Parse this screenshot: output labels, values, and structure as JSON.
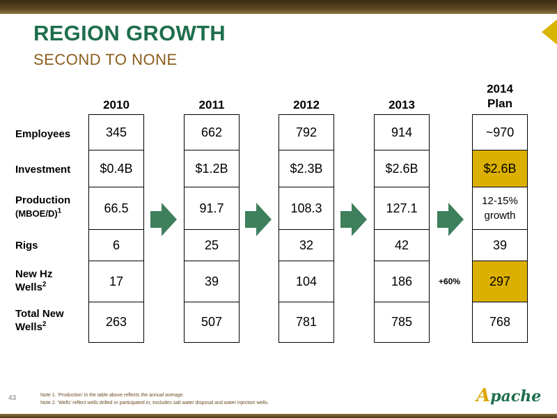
{
  "slide": {
    "title": "REGION GROWTH",
    "subtitle": "SECOND TO NONE",
    "page_number": "43",
    "logo_text": "pache",
    "logo_initial": "A",
    "growth_note": "+60%"
  },
  "rows": [
    {
      "label": "Employees",
      "label_sup": ""
    },
    {
      "label": "Investment",
      "label_sup": ""
    },
    {
      "label": "Production",
      "label_line2": "(MBOE/D)",
      "label_sup": "1"
    },
    {
      "label": "Rigs",
      "label_sup": ""
    },
    {
      "label": "New Hz",
      "label_line2": "Wells",
      "label_sup": "2"
    },
    {
      "label": "Total New",
      "label_line2": "Wells",
      "label_sup": "2"
    }
  ],
  "columns": [
    {
      "year": "2010",
      "values": [
        "345",
        "$0.4B",
        "66.5",
        "6",
        "17",
        "263"
      ]
    },
    {
      "year": "2011",
      "values": [
        "662",
        "$1.2B",
        "91.7",
        "25",
        "39",
        "507"
      ]
    },
    {
      "year": "2012",
      "values": [
        "792",
        "$2.3B",
        "108.3",
        "32",
        "104",
        "781"
      ]
    },
    {
      "year": "2013",
      "values": [
        "914",
        "$2.6B",
        "127.1",
        "42",
        "186",
        "785"
      ]
    },
    {
      "year": "2014",
      "year_line2": "Plan",
      "values": [
        "~970",
        "$2.6B",
        "12-15%",
        "39",
        "297",
        "768"
      ],
      "production_line2": "growth"
    }
  ],
  "notes": [
    "Note 1. ‘Production’ in the table above reflects the annual average.",
    "Note 2. ‘Wells’ reflect wells drilled or participated in;  excludes salt water disposal and water injection wells."
  ],
  "colors": {
    "title": "#1f6e4e",
    "subtitle": "#8a5d1c",
    "highlight": "#dcb000",
    "arrow": "#3e7f5c"
  }
}
